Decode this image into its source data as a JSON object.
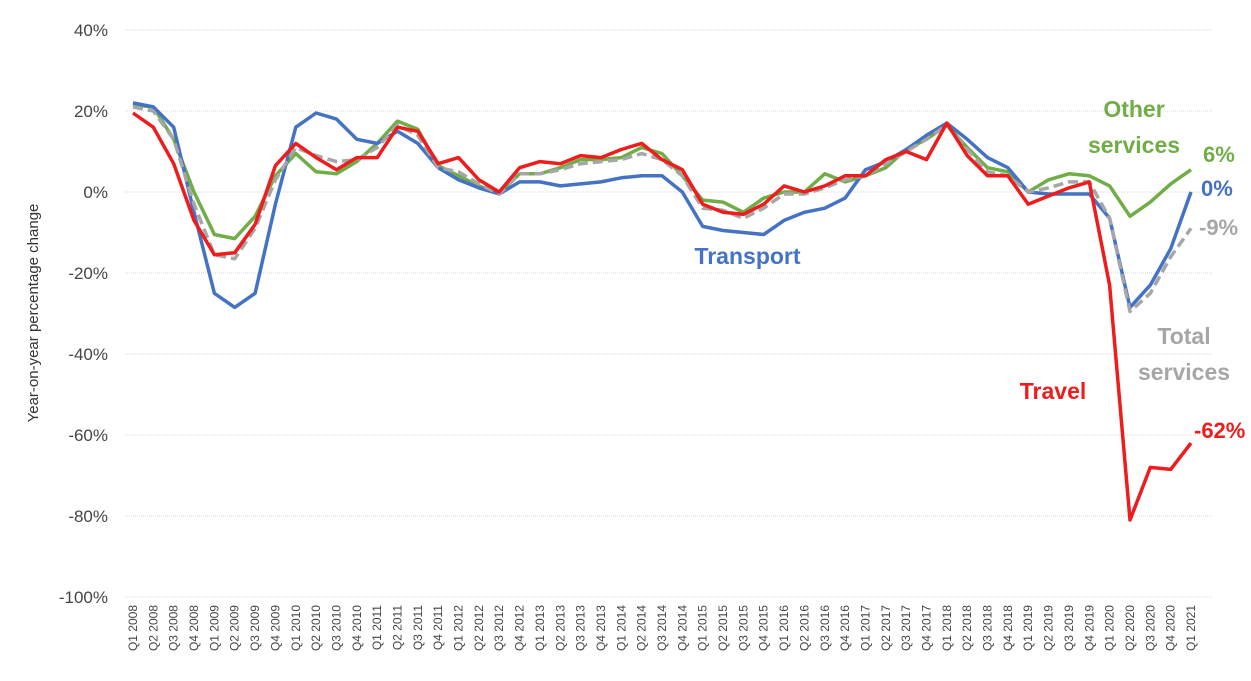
{
  "chart_data": {
    "type": "line",
    "y_label": "Year-on-year percentage change",
    "categories": [
      "Q1 2008",
      "Q2 2008",
      "Q3 2008",
      "Q4 2008",
      "Q1 2009",
      "Q2 2009",
      "Q3 2009",
      "Q4 2009",
      "Q1 2010",
      "Q2 2010",
      "Q3 2010",
      "Q4 2010",
      "Q1 2011",
      "Q2 2011",
      "Q3 2011",
      "Q4 2011",
      "Q1 2012",
      "Q2 2012",
      "Q3 2012",
      "Q4 2012",
      "Q1 2013",
      "Q2 2013",
      "Q3 2013",
      "Q4 2013",
      "Q1 2014",
      "Q2 2014",
      "Q3 2014",
      "Q4 2014",
      "Q1 2015",
      "Q2 2015",
      "Q3 2015",
      "Q4 2015",
      "Q1 2016",
      "Q2 2016",
      "Q3 2016",
      "Q4 2016",
      "Q1 2017",
      "Q2 2017",
      "Q3 2017",
      "Q4 2017",
      "Q1 2018",
      "Q2 2018",
      "Q3 2018",
      "Q4 2018",
      "Q1 2019",
      "Q2 2019",
      "Q3 2019",
      "Q4 2019",
      "Q1 2020",
      "Q2 2020",
      "Q3 2020",
      "Q4 2020",
      "Q1 2021"
    ],
    "series": [
      {
        "name": "Other services",
        "color": "#70ad47",
        "dashed": false,
        "values": [
          21.5,
          21,
          13,
          0,
          -10.5,
          -11.5,
          -6,
          4,
          9.5,
          5,
          4.5,
          7.5,
          12,
          17.5,
          15.5,
          6.5,
          4,
          1.5,
          -0.5,
          4.5,
          4.5,
          6,
          8,
          8,
          8.5,
          11,
          9.5,
          4,
          -2,
          -2.5,
          -5,
          -1.5,
          0,
          0,
          4.5,
          2.5,
          4,
          6,
          10.5,
          13,
          16.5,
          11,
          6,
          5,
          0,
          3,
          4.5,
          4,
          1.5,
          -6,
          -2.5,
          2,
          5.5
        ],
        "value_labels": [
          null,
          null,
          null,
          null,
          null,
          null,
          null,
          null,
          null,
          null,
          null,
          null,
          null,
          null,
          null,
          null,
          null,
          null,
          null,
          null,
          null,
          null,
          null,
          null,
          null,
          null,
          null,
          null,
          null,
          null,
          null,
          null,
          null,
          null,
          null,
          null,
          null,
          null,
          null,
          null,
          null,
          null,
          null,
          null,
          null,
          null,
          null,
          null,
          null,
          null,
          null,
          null,
          "6%"
        ]
      },
      {
        "name": "Transport",
        "color": "#4472c4",
        "dashed": false,
        "values": [
          22,
          21,
          16,
          -5,
          -25,
          -28.5,
          -25,
          -3,
          16,
          19.5,
          18,
          13,
          12,
          15,
          12,
          6,
          3,
          1,
          -0.5,
          2.5,
          2.5,
          1.5,
          2,
          2.5,
          3.5,
          4,
          4,
          0,
          -8.5,
          -9.5,
          -10,
          -10.5,
          -7,
          -5,
          -4,
          -1.5,
          5.5,
          7.5,
          10.5,
          14,
          17,
          13,
          8.5,
          6,
          0,
          -0.5,
          -0.5,
          -0.5,
          -6.5,
          -28.5,
          -23,
          -14,
          0
        ],
        "value_labels": [
          null,
          null,
          null,
          null,
          null,
          null,
          null,
          null,
          null,
          null,
          null,
          null,
          null,
          null,
          null,
          null,
          null,
          null,
          null,
          null,
          null,
          null,
          null,
          null,
          null,
          null,
          null,
          null,
          null,
          null,
          null,
          null,
          null,
          null,
          null,
          null,
          null,
          null,
          null,
          null,
          null,
          null,
          null,
          null,
          null,
          null,
          null,
          null,
          null,
          null,
          null,
          null,
          "0%"
        ]
      },
      {
        "name": "Total services",
        "color": "#a6a6a6",
        "dashed": true,
        "values": [
          21,
          20,
          13,
          -3,
          -15.5,
          -16.5,
          -9,
          3,
          11,
          9,
          7.5,
          8,
          11,
          16.5,
          14,
          6,
          5,
          2,
          -0.5,
          4.5,
          4.5,
          5.5,
          7,
          7.5,
          8,
          9.5,
          8,
          4,
          -4,
          -4.5,
          -6.5,
          -4,
          -0.5,
          -0.5,
          1,
          3,
          4,
          7,
          10,
          13,
          16.5,
          10.5,
          5,
          4,
          0,
          1,
          2.5,
          2.5,
          -6.5,
          -29.5,
          -25,
          -16,
          -9
        ],
        "value_labels": [
          null,
          null,
          null,
          null,
          null,
          null,
          null,
          null,
          null,
          null,
          null,
          null,
          null,
          null,
          null,
          null,
          null,
          null,
          null,
          null,
          null,
          null,
          null,
          null,
          null,
          null,
          null,
          null,
          null,
          null,
          null,
          null,
          null,
          null,
          null,
          null,
          null,
          null,
          null,
          null,
          null,
          null,
          null,
          null,
          null,
          null,
          null,
          null,
          null,
          null,
          null,
          null,
          "-9%"
        ]
      },
      {
        "name": "Travel",
        "color": "#ee1c1c",
        "dashed": false,
        "values": [
          19.5,
          16,
          7,
          -7,
          -15.5,
          -15,
          -8,
          6.5,
          12,
          8.5,
          5.5,
          8.5,
          8.5,
          16,
          15,
          7,
          8.5,
          3,
          0,
          6,
          7.5,
          7,
          9,
          8.5,
          10.5,
          12,
          8,
          5.5,
          -3,
          -5,
          -5.5,
          -3,
          1.5,
          0,
          1.5,
          4,
          4,
          8,
          10,
          8,
          17,
          9,
          4,
          4,
          -3,
          -1,
          1,
          2.5,
          -23,
          -81,
          -68,
          -68.5,
          -62
        ],
        "value_labels": [
          null,
          null,
          null,
          null,
          null,
          null,
          null,
          null,
          null,
          null,
          null,
          null,
          null,
          null,
          null,
          null,
          null,
          null,
          null,
          null,
          null,
          null,
          null,
          null,
          null,
          null,
          null,
          null,
          null,
          null,
          null,
          null,
          null,
          null,
          null,
          null,
          null,
          null,
          null,
          null,
          null,
          null,
          null,
          null,
          null,
          null,
          null,
          null,
          null,
          null,
          null,
          null,
          "-62%"
        ]
      }
    ],
    "ylim": [
      -100,
      40
    ],
    "yticks": [
      {
        "value": -100,
        "label": "-100%"
      },
      {
        "value": -80,
        "label": "-80%"
      },
      {
        "value": -60,
        "label": "-60%"
      },
      {
        "value": -40,
        "label": "-40%"
      },
      {
        "value": -20,
        "label": "-20%"
      },
      {
        "value": 0,
        "label": "0%"
      },
      {
        "value": 20,
        "label": "20%"
      },
      {
        "value": 40,
        "label": "40%"
      }
    ],
    "grid": true
  }
}
